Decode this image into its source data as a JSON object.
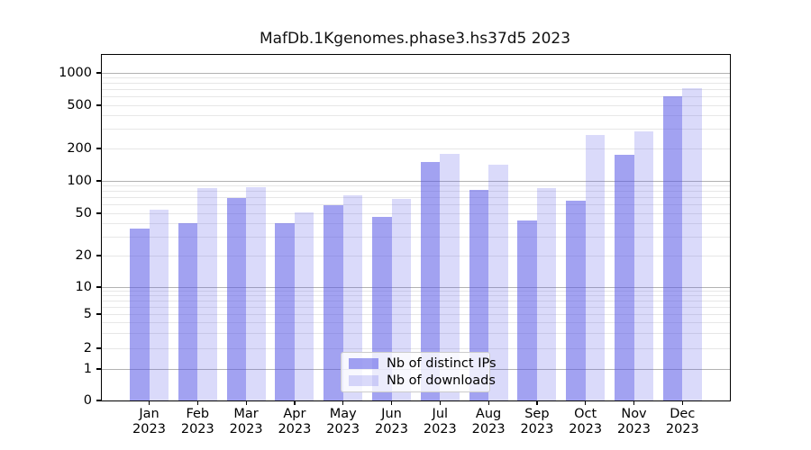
{
  "chart_data": {
    "type": "bar",
    "title": "MafDb.1Kgenomes.phase3.hs37d5 2023",
    "categories": [
      "Jan",
      "Feb",
      "Mar",
      "Apr",
      "May",
      "Jun",
      "Jul",
      "Aug",
      "Sep",
      "Oct",
      "Nov",
      "Dec"
    ],
    "category_year": "2023",
    "series": [
      {
        "name": "Nb of distinct IPs",
        "color": "#5555e6",
        "alpha": 0.55,
        "solid_color_hex": "#a3a3f0",
        "values": [
          36,
          40,
          70,
          40,
          60,
          46,
          150,
          82,
          43,
          65,
          175,
          610
        ]
      },
      {
        "name": "Nb of downloads",
        "color": "#5555e6",
        "alpha": 0.22,
        "solid_color_hex": "#d9d9f9",
        "values": [
          54,
          85,
          87,
          51,
          74,
          68,
          180,
          142,
          85,
          265,
          285,
          720
        ]
      }
    ],
    "y_ticks": [
      1000,
      500,
      200,
      100,
      50,
      20,
      10,
      5,
      2,
      1,
      0
    ],
    "y_scale": "symlog",
    "ylim": [
      0,
      1490
    ],
    "xlabel": "",
    "ylabel": "",
    "grid": "on",
    "legend_position": "lower-center",
    "grid_major_color": "#b2b2b2",
    "grid_minor_color": "#e7e7e7"
  }
}
